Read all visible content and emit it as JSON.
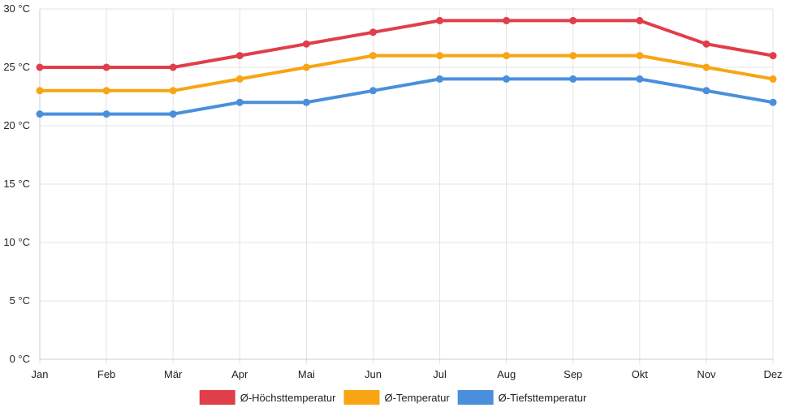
{
  "chart_data": {
    "type": "line",
    "categories": [
      "Jan",
      "Feb",
      "Mär",
      "Apr",
      "Mai",
      "Jun",
      "Jul",
      "Aug",
      "Sep",
      "Okt",
      "Nov",
      "Dez"
    ],
    "series": [
      {
        "name": "Ø-Höchsttemperatur",
        "color": "#e03e4a",
        "values": [
          25,
          25,
          25,
          26,
          27,
          28,
          29,
          29,
          29,
          29,
          27,
          26
        ]
      },
      {
        "name": "Ø-Temperatur",
        "color": "#f8a513",
        "values": [
          23,
          23,
          23,
          24,
          25,
          26,
          26,
          26,
          26,
          26,
          25,
          24
        ]
      },
      {
        "name": "Ø-Tiefsttemperatur",
        "color": "#4a8fdc",
        "values": [
          21,
          21,
          21,
          22,
          22,
          23,
          24,
          24,
          24,
          24,
          23,
          22
        ]
      }
    ],
    "y_ticks": [
      "0 °C",
      "5 °C",
      "10 °C",
      "15 °C",
      "20 °C",
      "25 °C",
      "30 °C"
    ],
    "ylim": [
      0,
      30
    ],
    "y_step": 5,
    "grid": true,
    "legend_position": "bottom-center"
  }
}
